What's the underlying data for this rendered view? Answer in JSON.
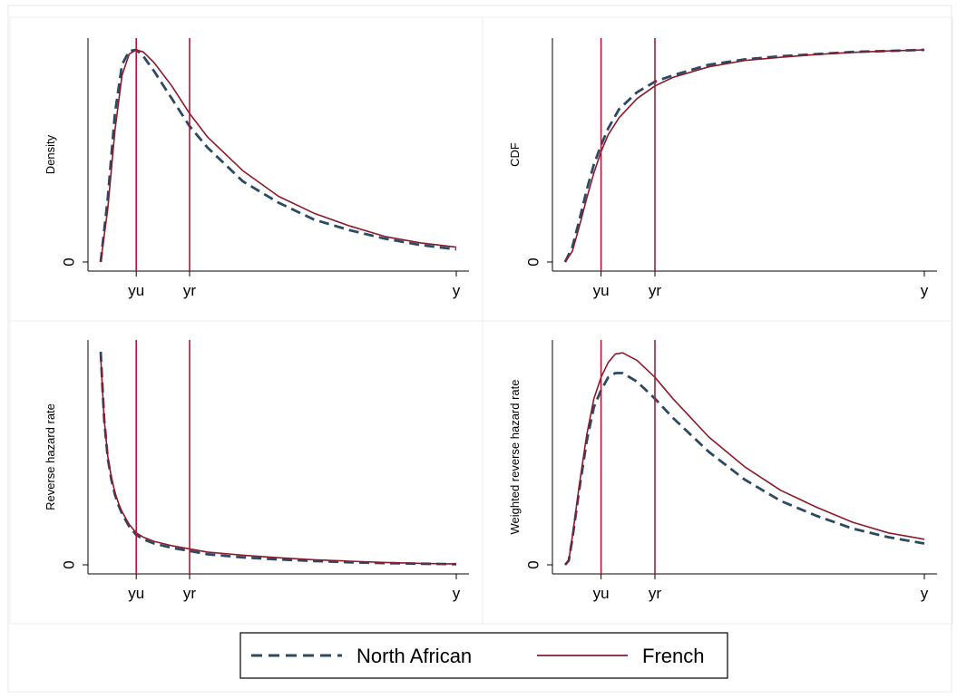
{
  "colors": {
    "north_african": "#2c4a63",
    "french": "#8b1a2b",
    "vline": "#b0173a",
    "grid": "#e8ecef",
    "axis": "#000000"
  },
  "legend": {
    "placement": "bottom",
    "entries": [
      "North African",
      "French"
    ]
  },
  "chart_data": [
    {
      "type": "line",
      "title": "",
      "ylabel": "Density",
      "xlim": [
        0,
        1
      ],
      "ylim": [
        0,
        1
      ],
      "x_ticks": [
        {
          "value": 0.1,
          "label": "yu"
        },
        {
          "value": 0.25,
          "label": "yr"
        },
        {
          "value": 1.0,
          "label": "y"
        }
      ],
      "y_ticks": [
        {
          "value": 0,
          "label": "0"
        }
      ],
      "vlines": [
        0.1,
        0.25
      ],
      "series": [
        {
          "name": "North African",
          "style": "dashed",
          "x": [
            0.0,
            0.02,
            0.04,
            0.06,
            0.08,
            0.1,
            0.12,
            0.15,
            0.2,
            0.25,
            0.3,
            0.4,
            0.5,
            0.6,
            0.7,
            0.8,
            0.9,
            1.0
          ],
          "y": [
            0.0,
            0.3,
            0.7,
            0.93,
            0.995,
            1.0,
            0.97,
            0.9,
            0.77,
            0.64,
            0.54,
            0.38,
            0.28,
            0.2,
            0.15,
            0.11,
            0.08,
            0.06
          ]
        },
        {
          "name": "French",
          "style": "solid",
          "x": [
            0.0,
            0.02,
            0.04,
            0.06,
            0.08,
            0.1,
            0.12,
            0.15,
            0.2,
            0.25,
            0.3,
            0.4,
            0.5,
            0.6,
            0.7,
            0.8,
            0.9,
            1.0
          ],
          "y": [
            0.0,
            0.25,
            0.62,
            0.88,
            0.98,
            1.0,
            0.99,
            0.94,
            0.83,
            0.7,
            0.59,
            0.43,
            0.31,
            0.23,
            0.17,
            0.12,
            0.09,
            0.07
          ]
        }
      ]
    },
    {
      "type": "line",
      "title": "",
      "ylabel": "CDF",
      "xlim": [
        0,
        1
      ],
      "ylim": [
        0,
        1
      ],
      "x_ticks": [
        {
          "value": 0.1,
          "label": "yu"
        },
        {
          "value": 0.25,
          "label": "yr"
        },
        {
          "value": 1.0,
          "label": "y"
        }
      ],
      "y_ticks": [
        {
          "value": 0,
          "label": "0"
        }
      ],
      "vlines": [
        0.1,
        0.25
      ],
      "series": [
        {
          "name": "North African",
          "style": "dashed",
          "x": [
            0.0,
            0.02,
            0.04,
            0.06,
            0.08,
            0.1,
            0.12,
            0.15,
            0.2,
            0.25,
            0.3,
            0.4,
            0.5,
            0.6,
            0.7,
            0.8,
            0.9,
            1.0
          ],
          "y": [
            0.0,
            0.07,
            0.2,
            0.34,
            0.46,
            0.55,
            0.63,
            0.72,
            0.8,
            0.85,
            0.88,
            0.93,
            0.955,
            0.97,
            0.98,
            0.99,
            0.995,
            1.0
          ]
        },
        {
          "name": "French",
          "style": "solid",
          "x": [
            0.0,
            0.02,
            0.04,
            0.06,
            0.08,
            0.1,
            0.12,
            0.15,
            0.2,
            0.25,
            0.3,
            0.4,
            0.5,
            0.6,
            0.7,
            0.8,
            0.9,
            1.0
          ],
          "y": [
            0.0,
            0.05,
            0.17,
            0.3,
            0.42,
            0.52,
            0.6,
            0.68,
            0.77,
            0.83,
            0.87,
            0.92,
            0.95,
            0.965,
            0.978,
            0.988,
            0.995,
            1.0
          ]
        }
      ]
    },
    {
      "type": "line",
      "title": "",
      "ylabel": "Reverse hazard rate",
      "xlim": [
        0,
        1
      ],
      "ylim": [
        0,
        1
      ],
      "x_ticks": [
        {
          "value": 0.1,
          "label": "yu"
        },
        {
          "value": 0.25,
          "label": "yr"
        },
        {
          "value": 1.0,
          "label": "y"
        }
      ],
      "y_ticks": [
        {
          "value": 0,
          "label": "0"
        }
      ],
      "vlines": [
        0.1,
        0.25
      ],
      "series": [
        {
          "name": "North African",
          "style": "dashed",
          "x": [
            0.0,
            0.005,
            0.01,
            0.02,
            0.03,
            0.04,
            0.05,
            0.06,
            0.08,
            0.1,
            0.12,
            0.15,
            0.2,
            0.25,
            0.3,
            0.4,
            0.5,
            0.6,
            0.7,
            0.8,
            0.9,
            1.0
          ],
          "y": [
            1.0,
            0.83,
            0.68,
            0.5,
            0.4,
            0.33,
            0.28,
            0.24,
            0.18,
            0.14,
            0.12,
            0.1,
            0.08,
            0.065,
            0.05,
            0.035,
            0.025,
            0.018,
            0.012,
            0.008,
            0.005,
            0.003
          ]
        },
        {
          "name": "French",
          "style": "solid",
          "x": [
            0.0,
            0.005,
            0.01,
            0.02,
            0.03,
            0.04,
            0.05,
            0.06,
            0.08,
            0.1,
            0.12,
            0.15,
            0.2,
            0.25,
            0.3,
            0.4,
            0.5,
            0.6,
            0.7,
            0.8,
            0.9,
            1.0
          ],
          "y": [
            0.98,
            0.82,
            0.68,
            0.51,
            0.41,
            0.34,
            0.29,
            0.25,
            0.19,
            0.15,
            0.13,
            0.11,
            0.09,
            0.075,
            0.06,
            0.045,
            0.033,
            0.024,
            0.017,
            0.011,
            0.007,
            0.004
          ]
        }
      ]
    },
    {
      "type": "line",
      "title": "",
      "ylabel": "Weighted reverse hazard rate",
      "xlim": [
        0,
        1
      ],
      "ylim": [
        0,
        1
      ],
      "x_ticks": [
        {
          "value": 0.1,
          "label": "yu"
        },
        {
          "value": 0.25,
          "label": "yr"
        },
        {
          "value": 1.0,
          "label": "y"
        }
      ],
      "y_ticks": [
        {
          "value": 0,
          "label": "0"
        }
      ],
      "vlines": [
        0.1,
        0.25
      ],
      "series": [
        {
          "name": "North African",
          "style": "dashed",
          "x": [
            0.0,
            0.01,
            0.02,
            0.04,
            0.06,
            0.08,
            0.1,
            0.12,
            0.14,
            0.16,
            0.2,
            0.25,
            0.3,
            0.4,
            0.5,
            0.6,
            0.7,
            0.8,
            0.9,
            1.0
          ],
          "y": [
            0.0,
            0.02,
            0.12,
            0.36,
            0.58,
            0.74,
            0.82,
            0.88,
            0.9,
            0.9,
            0.86,
            0.78,
            0.69,
            0.53,
            0.4,
            0.3,
            0.23,
            0.17,
            0.13,
            0.1
          ]
        },
        {
          "name": "French",
          "style": "solid",
          "x": [
            0.0,
            0.01,
            0.02,
            0.04,
            0.06,
            0.08,
            0.1,
            0.12,
            0.14,
            0.16,
            0.2,
            0.25,
            0.3,
            0.4,
            0.5,
            0.6,
            0.7,
            0.8,
            0.9,
            1.0
          ],
          "y": [
            0.0,
            0.02,
            0.13,
            0.38,
            0.61,
            0.78,
            0.88,
            0.95,
            0.99,
            0.995,
            0.96,
            0.88,
            0.78,
            0.6,
            0.46,
            0.35,
            0.27,
            0.2,
            0.15,
            0.12
          ]
        }
      ]
    }
  ]
}
